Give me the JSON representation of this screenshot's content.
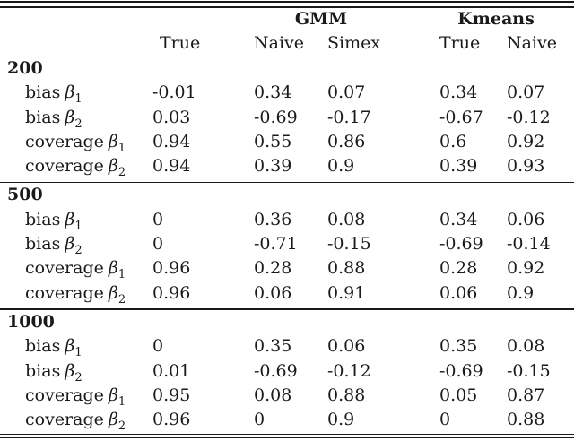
{
  "table": {
    "groups": [
      {
        "label": "GMM"
      },
      {
        "label": "Kmeans"
      }
    ],
    "columns": [
      "True",
      "Naive",
      "Simex",
      "True",
      "Naive"
    ],
    "sections": [
      {
        "title": "200",
        "rows": [
          {
            "metric": "bias",
            "symbol": "β",
            "sub": "1",
            "values": [
              "-0.01",
              "0.34",
              "0.07",
              "0.34",
              "0.07"
            ]
          },
          {
            "metric": "bias",
            "symbol": "β",
            "sub": "2",
            "values": [
              "0.03",
              "-0.69",
              "-0.17",
              "-0.67",
              "-0.12"
            ]
          },
          {
            "metric": "coverage",
            "symbol": "β",
            "sub": "1",
            "values": [
              "0.94",
              "0.55",
              "0.86",
              "0.6",
              "0.92"
            ]
          },
          {
            "metric": "coverage",
            "symbol": "β",
            "sub": "2",
            "values": [
              "0.94",
              "0.39",
              "0.9",
              "0.39",
              "0.93"
            ]
          }
        ]
      },
      {
        "title": "500",
        "rows": [
          {
            "metric": "bias",
            "symbol": "β",
            "sub": "1",
            "values": [
              "0",
              "0.36",
              "0.08",
              "0.34",
              "0.06"
            ]
          },
          {
            "metric": "bias",
            "symbol": "β",
            "sub": "2",
            "values": [
              "0",
              "-0.71",
              "-0.15",
              "-0.69",
              "-0.14"
            ]
          },
          {
            "metric": "coverage",
            "symbol": "β",
            "sub": "1",
            "values": [
              "0.96",
              "0.28",
              "0.88",
              "0.28",
              "0.92"
            ]
          },
          {
            "metric": "coverage",
            "symbol": "β",
            "sub": "2",
            "values": [
              "0.96",
              "0.06",
              "0.91",
              "0.06",
              "0.9"
            ]
          }
        ]
      },
      {
        "title": "1000",
        "rows": [
          {
            "metric": "bias",
            "symbol": "β",
            "sub": "1",
            "values": [
              "0",
              "0.35",
              "0.06",
              "0.35",
              "0.08"
            ]
          },
          {
            "metric": "bias",
            "symbol": "β",
            "sub": "2",
            "values": [
              "0.01",
              "-0.69",
              "-0.12",
              "-0.69",
              "-0.15"
            ]
          },
          {
            "metric": "coverage",
            "symbol": "β",
            "sub": "1",
            "values": [
              "0.95",
              "0.08",
              "0.88",
              "0.05",
              "0.87"
            ]
          },
          {
            "metric": "coverage",
            "symbol": "β",
            "sub": "2",
            "values": [
              "0.96",
              "0",
              "0.9",
              "0",
              "0.88"
            ]
          }
        ]
      }
    ],
    "colors": {
      "background": "#ffffff",
      "text": "#1a1a1a",
      "rule": "#1a1a1a"
    }
  }
}
